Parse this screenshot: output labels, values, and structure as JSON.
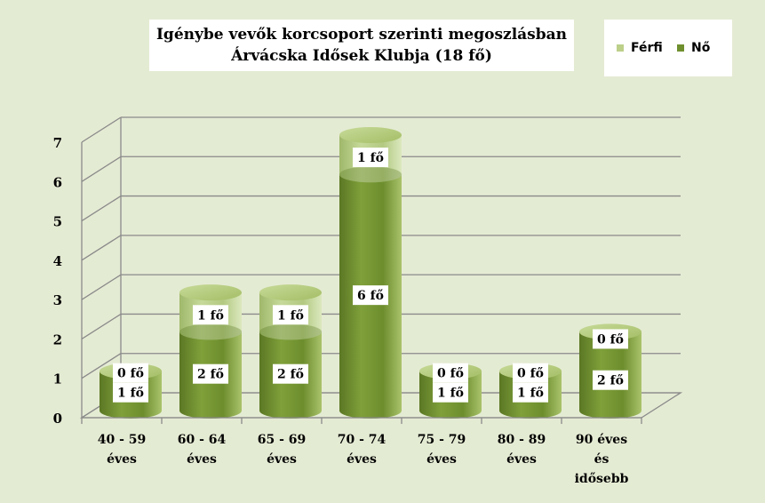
{
  "chart_data": {
    "type": "bar",
    "title": "Igénybe vevők korcsoport szerinti megoszlásban",
    "subtitle": "Árvácska Idősek Klubja (18 fő)",
    "categories": [
      [
        "40 - 59",
        "éves"
      ],
      [
        "60 - 64",
        "éves"
      ],
      [
        "65 - 69",
        "éves"
      ],
      [
        "70 - 74",
        "éves"
      ],
      [
        "75 - 79",
        "éves"
      ],
      [
        "80 - 89",
        "éves"
      ],
      [
        "90 éves",
        "és",
        "idősebb"
      ]
    ],
    "series": [
      {
        "name": "Nő",
        "values": [
          1,
          2,
          2,
          6,
          1,
          1,
          2
        ],
        "labels": [
          "1 fő",
          "2 fő",
          "2 fő",
          "6 fő",
          "1 fő",
          "1 fő",
          "2 fő"
        ],
        "color": "#6f8f2e"
      },
      {
        "name": "Férfi",
        "values": [
          0,
          1,
          1,
          1,
          0,
          0,
          0
        ],
        "labels": [
          "0 fő",
          "1 fő",
          "1 fő",
          "1 fő",
          "0 fő",
          "0 fő",
          "0 fő"
        ],
        "color": "#bcd08a"
      }
    ],
    "stacked": true,
    "yticks": [
      "0",
      "1",
      "2",
      "3",
      "4",
      "5",
      "6",
      "7"
    ],
    "ylim": [
      0,
      7
    ],
    "grid": true,
    "legend_position": "top-right"
  },
  "legend": {
    "items": [
      {
        "label": "Férfi",
        "color": "#bcd08a"
      },
      {
        "label": "Nő",
        "color": "#6f8f2e"
      }
    ]
  }
}
